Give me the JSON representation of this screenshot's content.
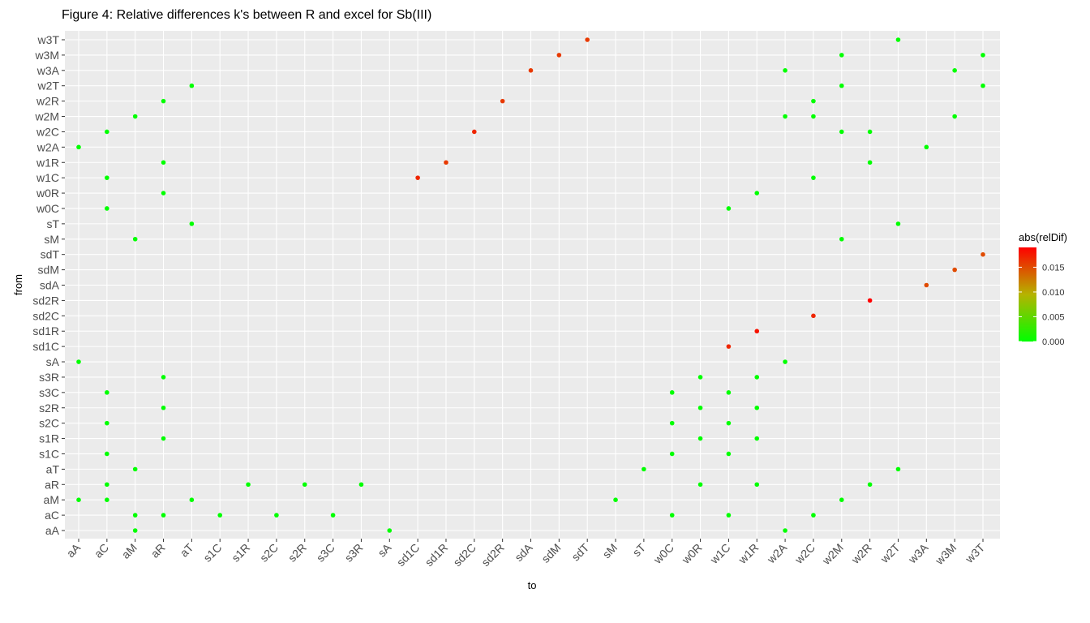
{
  "chart_data": {
    "type": "scatter",
    "title": "Figure 4: Relative differences k's between R and excel for Sb(III)",
    "xlabel": "to",
    "ylabel": "from",
    "x_categories": [
      "aA",
      "aC",
      "aM",
      "aR",
      "aT",
      "s1C",
      "s1R",
      "s2C",
      "s2R",
      "s3C",
      "s3R",
      "sA",
      "sd1C",
      "sd1R",
      "sd2C",
      "sd2R",
      "sdA",
      "sdM",
      "sdT",
      "sM",
      "sT",
      "w0C",
      "w0R",
      "w1C",
      "w1R",
      "w2A",
      "w2C",
      "w2M",
      "w2R",
      "w2T",
      "w3A",
      "w3M",
      "w3T"
    ],
    "y_categories": [
      "aA",
      "aC",
      "aM",
      "aR",
      "aT",
      "s1C",
      "s1R",
      "s2C",
      "s2R",
      "s3C",
      "s3R",
      "sA",
      "sd1C",
      "sd1R",
      "sd2C",
      "sd2R",
      "sdA",
      "sdM",
      "sdT",
      "sM",
      "sT",
      "w0C",
      "w0R",
      "w1C",
      "w1R",
      "w2A",
      "w2C",
      "w2M",
      "w2R",
      "w2T",
      "w3A",
      "w3M",
      "w3T"
    ],
    "grid": true,
    "legend": {
      "title": "abs(relDif)",
      "position": "right",
      "ticks": [
        "0.000",
        "0.005",
        "0.010",
        "0.015"
      ],
      "tick_values": [
        0,
        0.005,
        0.01,
        0.015
      ],
      "range": [
        0,
        0.019
      ],
      "colors": {
        "low": "#00ff00",
        "high": "#ff0000"
      }
    },
    "points": [
      {
        "to": "aM",
        "from": "aA",
        "value": 0
      },
      {
        "to": "sA",
        "from": "aA",
        "value": 0
      },
      {
        "to": "w2A",
        "from": "aA",
        "value": 0
      },
      {
        "to": "aM",
        "from": "aC",
        "value": 0
      },
      {
        "to": "aR",
        "from": "aC",
        "value": 0
      },
      {
        "to": "s1C",
        "from": "aC",
        "value": 0
      },
      {
        "to": "s2C",
        "from": "aC",
        "value": 0
      },
      {
        "to": "s3C",
        "from": "aC",
        "value": 0
      },
      {
        "to": "w0C",
        "from": "aC",
        "value": 0
      },
      {
        "to": "w1C",
        "from": "aC",
        "value": 0
      },
      {
        "to": "w2C",
        "from": "aC",
        "value": 0
      },
      {
        "to": "aA",
        "from": "aM",
        "value": 0
      },
      {
        "to": "aC",
        "from": "aM",
        "value": 0
      },
      {
        "to": "aT",
        "from": "aM",
        "value": 0
      },
      {
        "to": "sM",
        "from": "aM",
        "value": 0
      },
      {
        "to": "w2M",
        "from": "aM",
        "value": 0
      },
      {
        "to": "aC",
        "from": "aR",
        "value": 0
      },
      {
        "to": "s1R",
        "from": "aR",
        "value": 0
      },
      {
        "to": "s2R",
        "from": "aR",
        "value": 0
      },
      {
        "to": "s3R",
        "from": "aR",
        "value": 0
      },
      {
        "to": "w0R",
        "from": "aR",
        "value": 0
      },
      {
        "to": "w1R",
        "from": "aR",
        "value": 0
      },
      {
        "to": "w2R",
        "from": "aR",
        "value": 0
      },
      {
        "to": "aM",
        "from": "aT",
        "value": 0
      },
      {
        "to": "sT",
        "from": "aT",
        "value": 0
      },
      {
        "to": "w2T",
        "from": "aT",
        "value": 0
      },
      {
        "to": "aC",
        "from": "s1C",
        "value": 0
      },
      {
        "to": "w0C",
        "from": "s1C",
        "value": 0
      },
      {
        "to": "w1C",
        "from": "s1C",
        "value": 0
      },
      {
        "to": "aR",
        "from": "s1R",
        "value": 0
      },
      {
        "to": "w0R",
        "from": "s1R",
        "value": 0
      },
      {
        "to": "w1R",
        "from": "s1R",
        "value": 0
      },
      {
        "to": "aC",
        "from": "s2C",
        "value": 0
      },
      {
        "to": "w0C",
        "from": "s2C",
        "value": 0
      },
      {
        "to": "w1C",
        "from": "s2C",
        "value": 0
      },
      {
        "to": "aR",
        "from": "s2R",
        "value": 0
      },
      {
        "to": "w0R",
        "from": "s2R",
        "value": 0
      },
      {
        "to": "w1R",
        "from": "s2R",
        "value": 0
      },
      {
        "to": "aC",
        "from": "s3C",
        "value": 0
      },
      {
        "to": "w0C",
        "from": "s3C",
        "value": 0
      },
      {
        "to": "w1C",
        "from": "s3C",
        "value": 0
      },
      {
        "to": "aR",
        "from": "s3R",
        "value": 0
      },
      {
        "to": "w0R",
        "from": "s3R",
        "value": 0
      },
      {
        "to": "w1R",
        "from": "s3R",
        "value": 0
      },
      {
        "to": "aA",
        "from": "sA",
        "value": 0
      },
      {
        "to": "w2A",
        "from": "sA",
        "value": 0
      },
      {
        "to": "w1C",
        "from": "sd1C",
        "value": 0.017
      },
      {
        "to": "w1R",
        "from": "sd1R",
        "value": 0.018
      },
      {
        "to": "w2C",
        "from": "sd2C",
        "value": 0.017
      },
      {
        "to": "w2R",
        "from": "sd2R",
        "value": 0.019
      },
      {
        "to": "w3A",
        "from": "sdA",
        "value": 0.015
      },
      {
        "to": "w3M",
        "from": "sdM",
        "value": 0.015
      },
      {
        "to": "w3T",
        "from": "sdT",
        "value": 0.015
      },
      {
        "to": "aM",
        "from": "sM",
        "value": 0
      },
      {
        "to": "w2M",
        "from": "sM",
        "value": 0
      },
      {
        "to": "aT",
        "from": "sT",
        "value": 0
      },
      {
        "to": "w2T",
        "from": "sT",
        "value": 0
      },
      {
        "to": "aC",
        "from": "w0C",
        "value": 0
      },
      {
        "to": "w1C",
        "from": "w0C",
        "value": 0
      },
      {
        "to": "aR",
        "from": "w0R",
        "value": 0
      },
      {
        "to": "w1R",
        "from": "w0R",
        "value": 0
      },
      {
        "to": "aC",
        "from": "w1C",
        "value": 0
      },
      {
        "to": "sd1C",
        "from": "w1C",
        "value": 0.017
      },
      {
        "to": "w2C",
        "from": "w1C",
        "value": 0
      },
      {
        "to": "aR",
        "from": "w1R",
        "value": 0
      },
      {
        "to": "sd1R",
        "from": "w1R",
        "value": 0.016
      },
      {
        "to": "w2R",
        "from": "w1R",
        "value": 0
      },
      {
        "to": "aA",
        "from": "w2A",
        "value": 0
      },
      {
        "to": "w3A",
        "from": "w2A",
        "value": 0
      },
      {
        "to": "aC",
        "from": "w2C",
        "value": 0
      },
      {
        "to": "sd2C",
        "from": "w2C",
        "value": 0.017
      },
      {
        "to": "w2M",
        "from": "w2C",
        "value": 0
      },
      {
        "to": "w2R",
        "from": "w2C",
        "value": 0
      },
      {
        "to": "aM",
        "from": "w2M",
        "value": 0
      },
      {
        "to": "w2A",
        "from": "w2M",
        "value": 0
      },
      {
        "to": "w2C",
        "from": "w2M",
        "value": 0
      },
      {
        "to": "w3M",
        "from": "w2M",
        "value": 0
      },
      {
        "to": "aR",
        "from": "w2R",
        "value": 0
      },
      {
        "to": "sd2R",
        "from": "w2R",
        "value": 0.016
      },
      {
        "to": "w2C",
        "from": "w2R",
        "value": 0
      },
      {
        "to": "aT",
        "from": "w2T",
        "value": 0
      },
      {
        "to": "w2M",
        "from": "w2T",
        "value": 0
      },
      {
        "to": "w3T",
        "from": "w2T",
        "value": 0
      },
      {
        "to": "sdA",
        "from": "w3A",
        "value": 0.016
      },
      {
        "to": "w2A",
        "from": "w3A",
        "value": 0
      },
      {
        "to": "w3M",
        "from": "w3A",
        "value": 0
      },
      {
        "to": "sdM",
        "from": "w3M",
        "value": 0.016
      },
      {
        "to": "w2M",
        "from": "w3M",
        "value": 0
      },
      {
        "to": "w3T",
        "from": "w3M",
        "value": 0
      },
      {
        "to": "sdT",
        "from": "w3T",
        "value": 0.016
      },
      {
        "to": "w2T",
        "from": "w3T",
        "value": 0
      }
    ]
  }
}
